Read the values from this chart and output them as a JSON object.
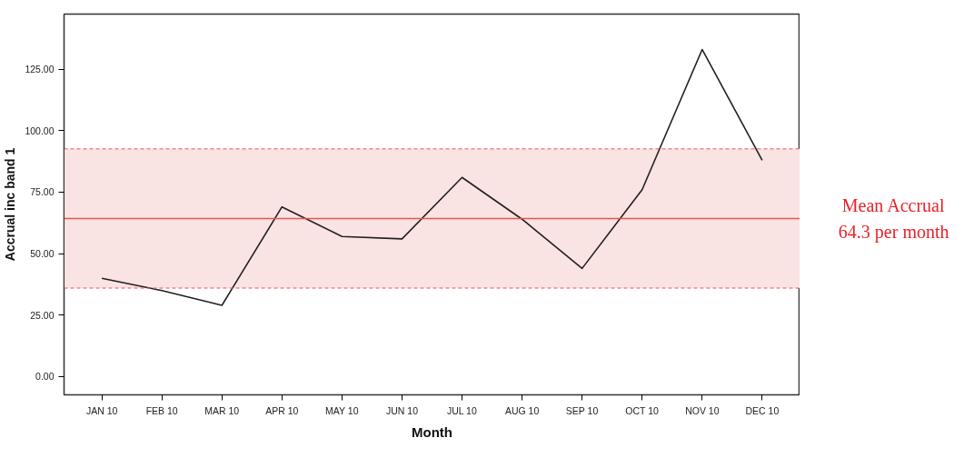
{
  "chart_data": {
    "type": "line",
    "xlabel": "Month",
    "ylabel": "Accrual inc band 1",
    "categories": [
      "JAN 10",
      "FEB 10",
      "MAR 10",
      "APR 10",
      "MAY 10",
      "JUN 10",
      "JUL 10",
      "AUG 10",
      "SEP 10",
      "OCT 10",
      "NOV 10",
      "DEC 10"
    ],
    "series": [
      {
        "color": "#231f20",
        "values": [
          40,
          35,
          29,
          69,
          57,
          56,
          81,
          64,
          44,
          76,
          133,
          88
        ]
      }
    ],
    "ylim": [
      -7.4,
      147.4
    ],
    "yticks": [
      {
        "value": 0,
        "label": "0.00"
      },
      {
        "value": 25,
        "label": "25.00"
      },
      {
        "value": 50,
        "label": "50.00"
      },
      {
        "value": 75,
        "label": "75.00"
      },
      {
        "value": 100,
        "label": "100.00"
      },
      {
        "value": 125,
        "label": "125.00"
      }
    ],
    "ref_lines": [
      {
        "axis": "y",
        "value": 64.3,
        "label": "Mean Accrual\n64.3 per month",
        "color": "#e8555a"
      },
      {
        "axis": "y",
        "value": 36,
        "color": "#e8555a",
        "line_style": "dashed"
      },
      {
        "axis": "y",
        "value": 92.6,
        "color": "#e8555a",
        "line_style": "dashed"
      }
    ],
    "bands": [
      {
        "axis": "y",
        "from": 36,
        "to": 92.6,
        "color": "#f9e3e3"
      }
    ],
    "grid": false,
    "marker": "none",
    "line_style": "solid"
  }
}
